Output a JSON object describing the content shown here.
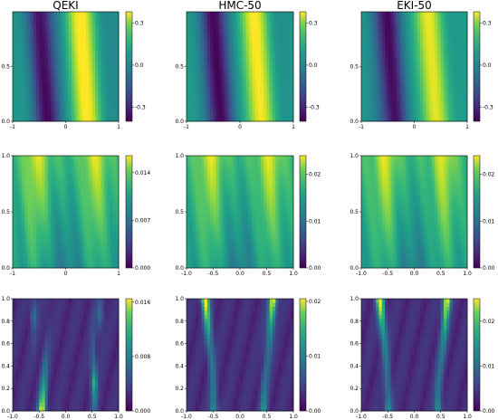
{
  "figure": {
    "columns": [
      "QEKI",
      "HMC-50",
      "EKI-50"
    ]
  },
  "chart_data": [
    {
      "type": "heatmap",
      "row": 0,
      "col": 0,
      "title": "QEKI",
      "xlim": [
        -1,
        1
      ],
      "ylim": [
        0,
        1
      ],
      "xticks": [
        "-1",
        "0",
        "1"
      ],
      "yticks": [
        "0.0",
        "0.5"
      ],
      "colorbar": {
        "range": [
          -0.4,
          0.38
        ],
        "ticks": [
          "0.3",
          "0.0",
          "-0.3"
        ],
        "tick_values": [
          0.3,
          0.0,
          -0.3
        ]
      }
    },
    {
      "type": "heatmap",
      "row": 0,
      "col": 1,
      "title": "HMC-50",
      "xlim": [
        -1,
        1
      ],
      "ylim": [
        0,
        1
      ],
      "xticks": [
        "-1",
        "0",
        "1"
      ],
      "yticks": [
        "0.0",
        "0.5"
      ],
      "colorbar": {
        "range": [
          -0.4,
          0.38
        ],
        "ticks": [
          "0.3",
          "0.0",
          "-0.3"
        ],
        "tick_values": [
          0.3,
          0.0,
          -0.3
        ]
      }
    },
    {
      "type": "heatmap",
      "row": 0,
      "col": 2,
      "title": "EKI-50",
      "xlim": [
        -1,
        1
      ],
      "ylim": [
        0,
        1
      ],
      "xticks": [
        "-1",
        "0",
        "1"
      ],
      "yticks": [
        "0.0",
        "0.5"
      ],
      "colorbar": {
        "range": [
          -0.4,
          0.38
        ],
        "ticks": [
          "0.3",
          "0.0",
          "-0.3"
        ],
        "tick_values": [
          0.3,
          0.0,
          -0.3
        ]
      }
    },
    {
      "type": "heatmap",
      "row": 1,
      "col": 0,
      "xlim": [
        -1,
        1
      ],
      "ylim": [
        0,
        1
      ],
      "xticks": [
        "-1",
        "0",
        "1"
      ],
      "yticks": [
        "0.0",
        "0.5",
        "1.0"
      ],
      "colorbar": {
        "range": [
          0,
          0.0165
        ],
        "ticks": [
          "0.014",
          "0.007",
          "0.000"
        ],
        "tick_values": [
          0.014,
          0.007,
          0.0
        ]
      }
    },
    {
      "type": "heatmap",
      "row": 1,
      "col": 1,
      "xlim": [
        -1,
        1
      ],
      "ylim": [
        0,
        1
      ],
      "xticks": [
        "-1.0",
        "-0.5",
        "0.0",
        "0.5",
        "1.0"
      ],
      "yticks": [
        "0.0",
        "0.5",
        "1.0"
      ],
      "colorbar": {
        "range": [
          0,
          0.024
        ],
        "ticks": [
          "0.02",
          "0.01",
          "0.00"
        ],
        "tick_values": [
          0.02,
          0.01,
          0.0
        ]
      }
    },
    {
      "type": "heatmap",
      "row": 1,
      "col": 2,
      "xlim": [
        -1,
        1
      ],
      "ylim": [
        0,
        1
      ],
      "xticks": [
        "-1.0",
        "-0.5",
        "0.0",
        "0.5",
        "1.0"
      ],
      "yticks": [
        "0.0",
        "0.5",
        "1.0"
      ],
      "colorbar": {
        "range": [
          0,
          0.024
        ],
        "ticks": [
          "0.02",
          "0.01",
          "0.00"
        ],
        "tick_values": [
          0.02,
          0.01,
          0.0
        ]
      }
    },
    {
      "type": "heatmap",
      "row": 2,
      "col": 0,
      "xlim": [
        -1,
        1
      ],
      "ylim": [
        0,
        1
      ],
      "xticks": [
        "-1.0",
        "-0.5",
        "0.0",
        "0.5",
        "1.0"
      ],
      "yticks": [
        "0.0",
        "0.2",
        "0.4",
        "0.6",
        "0.8",
        "1.0"
      ],
      "colorbar": {
        "range": [
          0,
          0.0165
        ],
        "ticks": [
          "0.016",
          "0.008",
          "0.000"
        ],
        "tick_values": [
          0.016,
          0.008,
          0.0
        ]
      }
    },
    {
      "type": "heatmap",
      "row": 2,
      "col": 1,
      "xlim": [
        -1,
        1
      ],
      "ylim": [
        0,
        1
      ],
      "xticks": [
        "-1.0",
        "-0.5",
        "0.0",
        "0.5",
        "1.0"
      ],
      "yticks": [
        "0.0",
        "0.2",
        "0.4",
        "0.6",
        "0.8",
        "1.0"
      ],
      "colorbar": {
        "range": [
          0,
          0.0205
        ],
        "ticks": [
          "0.02",
          "0.01",
          "0.00"
        ],
        "tick_values": [
          0.02,
          0.01,
          0.0
        ]
      }
    },
    {
      "type": "heatmap",
      "row": 2,
      "col": 2,
      "xlim": [
        -1,
        1
      ],
      "ylim": [
        0,
        1
      ],
      "xticks": [
        "-1.0",
        "-0.5",
        "0.0",
        "0.5",
        "1.0"
      ],
      "yticks": [
        "0.0",
        "0.2",
        "0.4",
        "0.6",
        "0.8",
        "1.0"
      ],
      "colorbar": {
        "range": [
          0,
          0.025
        ],
        "ticks": [
          "0.02",
          "0.01",
          "0.00"
        ],
        "tick_values": [
          0.02,
          0.01,
          0.0
        ]
      }
    }
  ]
}
